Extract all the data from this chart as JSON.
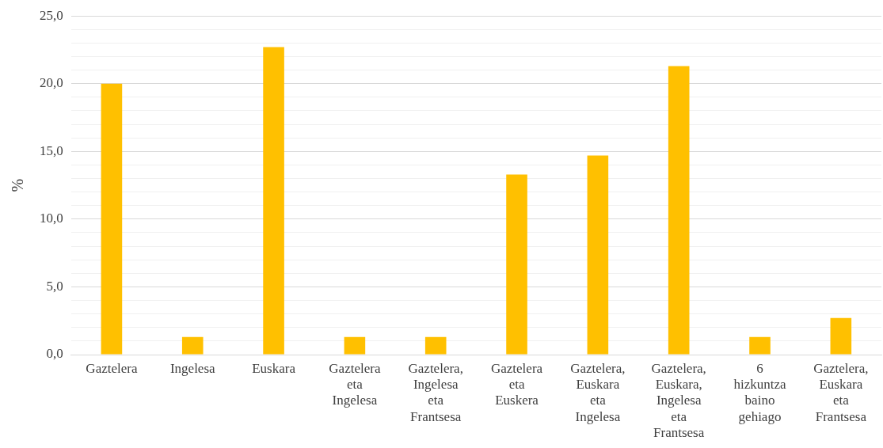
{
  "chart_data": {
    "type": "bar",
    "ylabel": "%",
    "categories": [
      "Gaztelera",
      "Ingelesa",
      "Euskara",
      "Gaztelera eta Ingelesa",
      "Gaztelera, Ingelesa eta Frantsesa",
      "Gaztelera eta Euskera",
      "Gaztelera, Euskara eta Ingelesa",
      "Gaztelera, Euskara, Ingelesa eta Frantsesa",
      "6 hizkuntza baino gehiago",
      "Gaztelera, Euskara eta Frantsesa"
    ],
    "values": [
      20.0,
      1.3,
      22.7,
      1.3,
      1.3,
      13.3,
      14.7,
      21.3,
      1.3,
      2.7
    ],
    "color": "#ffc000",
    "ylim": [
      0,
      25
    ],
    "yticks": [
      {
        "value": 0,
        "label": "0,0"
      },
      {
        "value": 1,
        "label": null
      },
      {
        "value": 2,
        "label": null
      },
      {
        "value": 3,
        "label": null
      },
      {
        "value": 4,
        "label": null
      },
      {
        "value": 5,
        "label": "5,0"
      },
      {
        "value": 6,
        "label": null
      },
      {
        "value": 7,
        "label": null
      },
      {
        "value": 8,
        "label": null
      },
      {
        "value": 9,
        "label": null
      },
      {
        "value": 10,
        "label": "10,0"
      },
      {
        "value": 11,
        "label": null
      },
      {
        "value": 12,
        "label": null
      },
      {
        "value": 13,
        "label": null
      },
      {
        "value": 14,
        "label": null
      },
      {
        "value": 15,
        "label": "15,0"
      },
      {
        "value": 16,
        "label": null
      },
      {
        "value": 17,
        "label": null
      },
      {
        "value": 18,
        "label": null
      },
      {
        "value": 19,
        "label": null
      },
      {
        "value": 20,
        "label": "20,0"
      },
      {
        "value": 21,
        "label": null
      },
      {
        "value": 22,
        "label": null
      },
      {
        "value": 23,
        "label": null
      },
      {
        "value": 24,
        "label": null
      },
      {
        "value": 25,
        "label": "25,0"
      }
    ],
    "grid": "y",
    "legend": false
  }
}
